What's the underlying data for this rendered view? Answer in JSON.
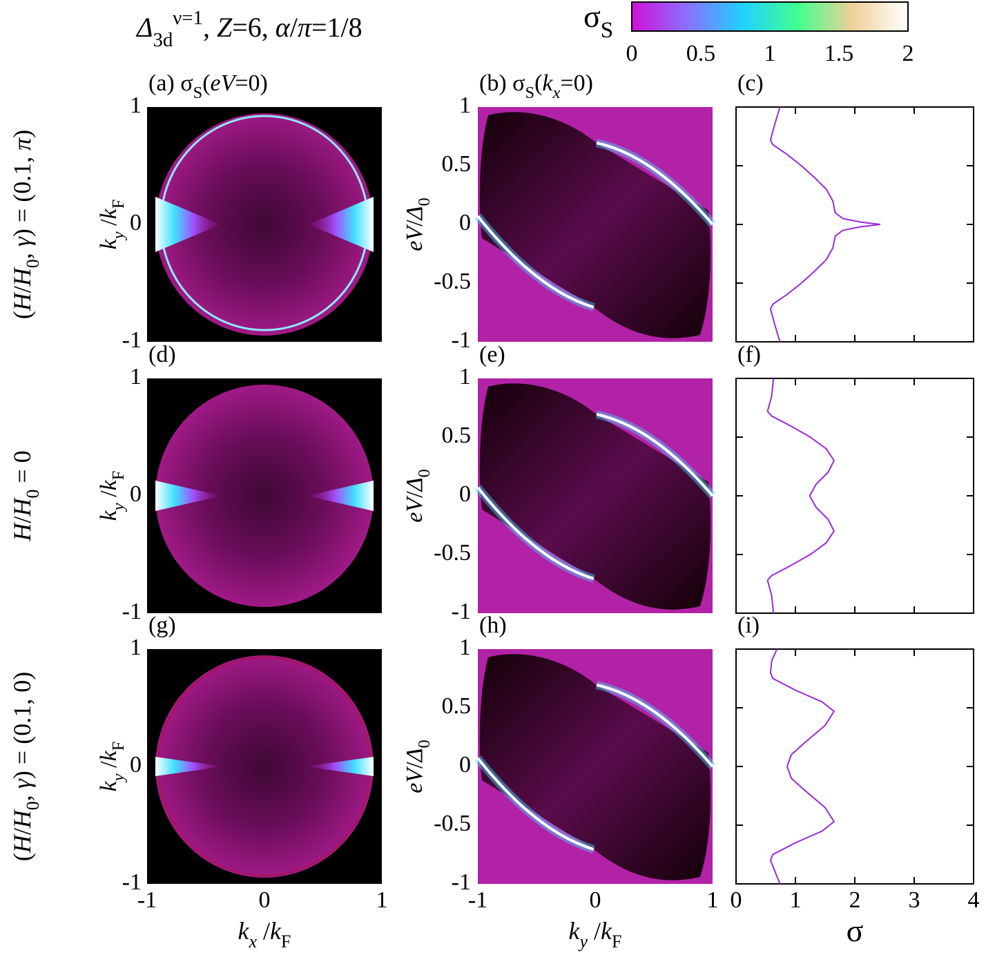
{
  "title": [
    {
      "t": "Δ",
      "s": "i"
    },
    {
      "t": "3d",
      "s": "sub"
    },
    {
      "t": "ν=1",
      "s": "sup"
    },
    {
      "t": ", ",
      "s": ""
    },
    {
      "t": "Z",
      "s": "i"
    },
    {
      "t": "=6, ",
      "s": ""
    },
    {
      "t": "α",
      "s": "i"
    },
    {
      "t": "/",
      "s": ""
    },
    {
      "t": "π",
      "s": "i"
    },
    {
      "t": "=1/8",
      "s": ""
    }
  ],
  "colorbar": {
    "label": [
      {
        "t": "σ",
        "s": ""
      },
      {
        "t": "S",
        "s": "sub"
      }
    ],
    "lim": [
      0,
      2
    ],
    "ticks": [
      0,
      0.5,
      1,
      1.5,
      2
    ],
    "colors": [
      "#d010d8",
      "#8a70ff",
      "#20d0ff",
      "#40ff90",
      "#f0d098",
      "#ffffff"
    ]
  },
  "row_labels": [
    [
      {
        "t": "(",
        "s": ""
      },
      {
        "t": "H",
        "s": "i"
      },
      {
        "t": "/",
        "s": ""
      },
      {
        "t": "H",
        "s": "i"
      },
      {
        "t": "0",
        "s": "sub"
      },
      {
        "t": ", ",
        "s": ""
      },
      {
        "t": "γ",
        "s": "i"
      },
      {
        "t": ") = (0.1, ",
        "s": ""
      },
      {
        "t": "π",
        "s": "i"
      },
      {
        "t": ")",
        "s": ""
      }
    ],
    [
      {
        "t": "H",
        "s": "i"
      },
      {
        "t": "/",
        "s": ""
      },
      {
        "t": "H",
        "s": "i"
      },
      {
        "t": "0",
        "s": "sub"
      },
      {
        "t": " = 0",
        "s": ""
      }
    ],
    [
      {
        "t": "(",
        "s": ""
      },
      {
        "t": "H",
        "s": "i"
      },
      {
        "t": "/",
        "s": ""
      },
      {
        "t": "H",
        "s": "i"
      },
      {
        "t": "0",
        "s": "sub"
      },
      {
        "t": ", ",
        "s": ""
      },
      {
        "t": "γ",
        "s": "i"
      },
      {
        "t": ") = (0.1, 0)",
        "s": ""
      }
    ]
  ],
  "chart_data": [
    {
      "type": "heatmap",
      "title": [
        {
          "t": "(a) σ",
          "s": ""
        },
        {
          "t": "S",
          "s": "sub"
        },
        {
          "t": "(",
          "s": ""
        },
        {
          "t": "eV",
          "s": "i"
        },
        {
          "t": "=0)",
          "s": ""
        }
      ],
      "ylabel": [
        {
          "t": "k",
          "s": "i"
        },
        {
          "t": "y",
          "s": "isub"
        },
        {
          "t": " /",
          "s": ""
        },
        {
          "t": "k",
          "s": "i"
        },
        {
          "t": "F",
          "s": "sub"
        }
      ],
      "ylim": [
        -1,
        1
      ],
      "yticks": [
        -1,
        0,
        1
      ]
    },
    {
      "type": "heatmap",
      "title": [
        {
          "t": "(b) σ",
          "s": ""
        },
        {
          "t": "S",
          "s": "sub"
        },
        {
          "t": "(",
          "s": ""
        },
        {
          "t": "k",
          "s": "i"
        },
        {
          "t": "x",
          "s": "isub"
        },
        {
          "t": "=0)",
          "s": ""
        }
      ],
      "ylabel": [
        {
          "t": "eV",
          "s": "i"
        },
        {
          "t": "/",
          "s": ""
        },
        {
          "t": "Δ",
          "s": "i"
        },
        {
          "t": "0",
          "s": "sub"
        }
      ],
      "ylim": [
        -1,
        1
      ],
      "yticks": [
        -1,
        -0.5,
        0,
        0.5,
        1
      ]
    },
    {
      "type": "line",
      "title": [
        {
          "t": "(c)",
          "s": ""
        }
      ],
      "color": "#9a2ad6",
      "xlim": [
        0,
        4
      ],
      "ylim": [
        -1,
        1
      ],
      "xticks": [
        0,
        1,
        2,
        3,
        4
      ],
      "yticks": [
        -1,
        -0.5,
        0,
        0.5,
        1
      ],
      "x": [
        0.74,
        0.65,
        0.58,
        0.62,
        0.85,
        1.1,
        1.32,
        1.52,
        1.63,
        1.67,
        1.8,
        2.1,
        2.43,
        2.1,
        1.8,
        1.67,
        1.63,
        1.52,
        1.32,
        1.1,
        0.85,
        0.62,
        0.58,
        0.65,
        0.74
      ],
      "y": [
        1,
        0.85,
        0.72,
        0.68,
        0.6,
        0.5,
        0.4,
        0.3,
        0.2,
        0.1,
        0.05,
        0.02,
        0,
        -0.02,
        -0.05,
        -0.1,
        -0.2,
        -0.3,
        -0.4,
        -0.5,
        -0.6,
        -0.68,
        -0.72,
        -0.85,
        -1
      ]
    },
    {
      "type": "heatmap",
      "title": [
        {
          "t": "(d)",
          "s": ""
        }
      ],
      "ylabel": [
        {
          "t": "k",
          "s": "i"
        },
        {
          "t": "y",
          "s": "isub"
        },
        {
          "t": " /",
          "s": ""
        },
        {
          "t": "k",
          "s": "i"
        },
        {
          "t": "F",
          "s": "sub"
        }
      ],
      "ylim": [
        -1,
        1
      ],
      "yticks": [
        -1,
        0,
        1
      ]
    },
    {
      "type": "heatmap",
      "title": [
        {
          "t": "(e)",
          "s": ""
        }
      ],
      "ylabel": [
        {
          "t": "eV",
          "s": "i"
        },
        {
          "t": "/",
          "s": ""
        },
        {
          "t": "Δ",
          "s": "i"
        },
        {
          "t": "0",
          "s": "sub"
        }
      ],
      "ylim": [
        -1,
        1
      ],
      "yticks": [
        -1,
        -0.5,
        0,
        0.5,
        1
      ]
    },
    {
      "type": "line",
      "title": [
        {
          "t": "(f)",
          "s": ""
        }
      ],
      "color": "#9a2ad6",
      "xlim": [
        0,
        4
      ],
      "ylim": [
        -1,
        1
      ],
      "xticks": [
        0,
        1,
        2,
        3,
        4
      ],
      "yticks": [
        -1,
        -0.5,
        0,
        0.5,
        1
      ],
      "x": [
        0.63,
        0.6,
        0.53,
        0.6,
        0.9,
        1.25,
        1.52,
        1.65,
        1.55,
        1.35,
        1.24,
        1.35,
        1.55,
        1.65,
        1.52,
        1.25,
        0.9,
        0.6,
        0.53,
        0.6,
        0.63
      ],
      "y": [
        1,
        0.85,
        0.72,
        0.68,
        0.6,
        0.5,
        0.4,
        0.3,
        0.2,
        0.1,
        0,
        -0.1,
        -0.2,
        -0.3,
        -0.4,
        -0.5,
        -0.6,
        -0.68,
        -0.72,
        -0.85,
        -1
      ]
    },
    {
      "type": "heatmap",
      "title": [
        {
          "t": "(g)",
          "s": ""
        }
      ],
      "ylabel": [
        {
          "t": "k",
          "s": "i"
        },
        {
          "t": "y",
          "s": "isub"
        },
        {
          "t": " /",
          "s": ""
        },
        {
          "t": "k",
          "s": "i"
        },
        {
          "t": "F",
          "s": "sub"
        }
      ],
      "xlabel": [
        {
          "t": "k",
          "s": "i"
        },
        {
          "t": "x",
          "s": "isub"
        },
        {
          "t": " /",
          "s": ""
        },
        {
          "t": "k",
          "s": "i"
        },
        {
          "t": "F",
          "s": "sub"
        }
      ],
      "xlim": [
        -1,
        1
      ],
      "xticks": [
        -1,
        0,
        1
      ],
      "ylim": [
        -1,
        1
      ],
      "yticks": [
        -1,
        0,
        1
      ]
    },
    {
      "type": "heatmap",
      "title": [
        {
          "t": "(h)",
          "s": ""
        }
      ],
      "ylabel": [
        {
          "t": "eV",
          "s": "i"
        },
        {
          "t": "/",
          "s": ""
        },
        {
          "t": "Δ",
          "s": "i"
        },
        {
          "t": "0",
          "s": "sub"
        }
      ],
      "xlabel": [
        {
          "t": "k",
          "s": "i"
        },
        {
          "t": "y",
          "s": "isub"
        },
        {
          "t": " /",
          "s": ""
        },
        {
          "t": "k",
          "s": "i"
        },
        {
          "t": "F",
          "s": "sub"
        }
      ],
      "xlim": [
        -1,
        1
      ],
      "xticks": [
        -1,
        0,
        1
      ],
      "ylim": [
        -1,
        1
      ],
      "yticks": [
        -1,
        -0.5,
        0,
        0.5,
        1
      ]
    },
    {
      "type": "line",
      "title": [
        {
          "t": "(i)",
          "s": ""
        }
      ],
      "color": "#9a2ad6",
      "xlim": [
        0,
        4
      ],
      "ylim": [
        -1,
        1
      ],
      "xticks": [
        0,
        1,
        2,
        3,
        4
      ],
      "yticks": [
        -1,
        -0.5,
        0,
        0.5,
        1
      ],
      "xticklabels": true,
      "xlabel": [
        {
          "t": "σ",
          "s": ""
        }
      ],
      "x": [
        0.69,
        0.6,
        0.58,
        0.62,
        1.0,
        1.45,
        1.65,
        1.5,
        1.15,
        0.93,
        0.86,
        0.93,
        1.15,
        1.5,
        1.65,
        1.45,
        1.0,
        0.62,
        0.58,
        0.66,
        0.74
      ],
      "y": [
        1,
        0.9,
        0.8,
        0.75,
        0.65,
        0.55,
        0.47,
        0.35,
        0.2,
        0.1,
        0,
        -0.1,
        -0.2,
        -0.35,
        -0.47,
        -0.55,
        -0.65,
        -0.75,
        -0.8,
        -0.9,
        -1
      ]
    }
  ]
}
